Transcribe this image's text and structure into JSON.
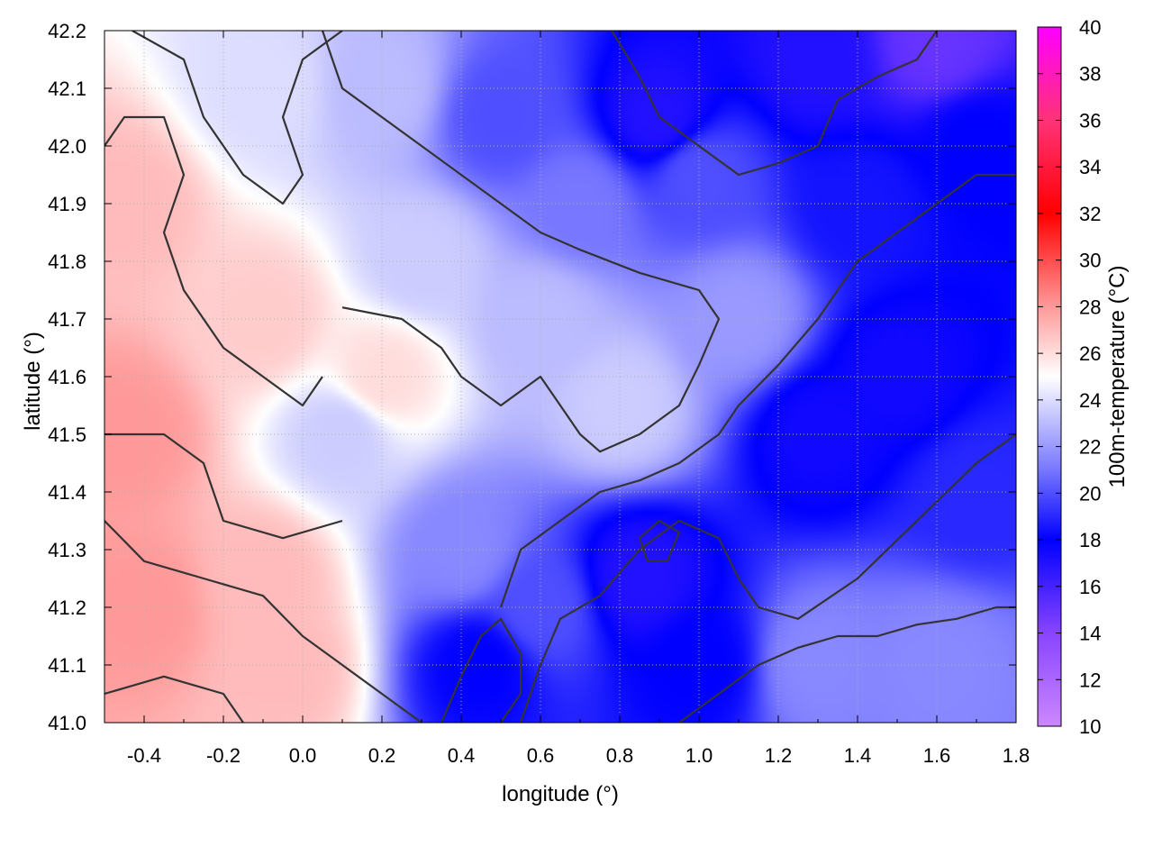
{
  "chart_data": {
    "type": "heatmap",
    "title": "",
    "xlabel": "longitude (°)",
    "ylabel": "latitude (°)",
    "xlim": [
      -0.5,
      1.8
    ],
    "ylim": [
      41.0,
      42.2
    ],
    "x_ticks": [
      "-0.4",
      "-0.2",
      "0.0",
      "0.2",
      "0.4",
      "0.6",
      "0.8",
      "1.0",
      "1.2",
      "1.4",
      "1.6",
      "1.8"
    ],
    "y_ticks": [
      "41.0",
      "41.1",
      "41.2",
      "41.3",
      "41.4",
      "41.5",
      "41.6",
      "41.7",
      "41.8",
      "41.9",
      "42.0",
      "42.1",
      "42.2"
    ],
    "grid": true,
    "colorbar": {
      "label": "100m-temperature (°C)",
      "range": [
        10,
        40
      ],
      "ticks": [
        "10",
        "12",
        "14",
        "16",
        "18",
        "20",
        "22",
        "24",
        "26",
        "28",
        "30",
        "32",
        "34",
        "36",
        "38",
        "40"
      ],
      "stops": [
        {
          "value": 10,
          "color": "#cc88ff"
        },
        {
          "value": 14,
          "color": "#8844ff"
        },
        {
          "value": 18,
          "color": "#0000ff"
        },
        {
          "value": 21,
          "color": "#7777ff"
        },
        {
          "value": 25,
          "color": "#ffffff"
        },
        {
          "value": 28,
          "color": "#ff9999"
        },
        {
          "value": 32,
          "color": "#ff0000"
        },
        {
          "value": 36,
          "color": "#ff3377"
        },
        {
          "value": 40,
          "color": "#ff00ff"
        }
      ]
    },
    "field_points": [
      {
        "x": -0.45,
        "y": 41.5,
        "v": 28
      },
      {
        "x": -0.4,
        "y": 41.2,
        "v": 28
      },
      {
        "x": -0.1,
        "y": 41.25,
        "v": 27
      },
      {
        "x": -0.45,
        "y": 41.9,
        "v": 27
      },
      {
        "x": -0.1,
        "y": 41.7,
        "v": 26.5
      },
      {
        "x": 0.2,
        "y": 41.6,
        "v": 26
      },
      {
        "x": -0.05,
        "y": 41.1,
        "v": 27
      },
      {
        "x": 0.1,
        "y": 41.5,
        "v": 23.5
      },
      {
        "x": 0.3,
        "y": 41.8,
        "v": 23.5
      },
      {
        "x": -0.1,
        "y": 42.1,
        "v": 24
      },
      {
        "x": 0.2,
        "y": 42.1,
        "v": 23
      },
      {
        "x": 0.4,
        "y": 41.3,
        "v": 21.5
      },
      {
        "x": 0.45,
        "y": 41.1,
        "v": 18
      },
      {
        "x": 0.6,
        "y": 41.2,
        "v": 20
      },
      {
        "x": 0.6,
        "y": 41.7,
        "v": 23
      },
      {
        "x": 0.8,
        "y": 41.55,
        "v": 23.5
      },
      {
        "x": 0.85,
        "y": 41.25,
        "v": 17
      },
      {
        "x": 1.0,
        "y": 41.1,
        "v": 18
      },
      {
        "x": 1.3,
        "y": 41.1,
        "v": 21.5
      },
      {
        "x": 1.6,
        "y": 41.1,
        "v": 21.5
      },
      {
        "x": 1.3,
        "y": 41.5,
        "v": 17.5
      },
      {
        "x": 1.5,
        "y": 41.6,
        "v": 17.5
      },
      {
        "x": 1.7,
        "y": 41.4,
        "v": 19
      },
      {
        "x": 1.1,
        "y": 41.7,
        "v": 22
      },
      {
        "x": 1.4,
        "y": 41.9,
        "v": 18.5
      },
      {
        "x": 1.7,
        "y": 42.0,
        "v": 18
      },
      {
        "x": 1.3,
        "y": 42.15,
        "v": 17
      },
      {
        "x": 1.6,
        "y": 42.18,
        "v": 15
      },
      {
        "x": 0.9,
        "y": 42.05,
        "v": 17
      },
      {
        "x": 0.5,
        "y": 42.05,
        "v": 20
      },
      {
        "x": 0.7,
        "y": 41.9,
        "v": 21
      },
      {
        "x": 1.0,
        "y": 41.95,
        "v": 20
      }
    ],
    "contours": [
      [
        [
          -0.43,
          42.2
        ],
        [
          -0.3,
          42.15
        ],
        [
          -0.25,
          42.05
        ],
        [
          -0.15,
          41.95
        ],
        [
          -0.05,
          41.9
        ],
        [
          0.0,
          41.95
        ],
        [
          -0.05,
          42.05
        ],
        [
          0.0,
          42.15
        ],
        [
          0.1,
          42.2
        ]
      ],
      [
        [
          -0.5,
          42.0
        ],
        [
          -0.45,
          42.05
        ],
        [
          -0.35,
          42.05
        ],
        [
          -0.3,
          41.95
        ],
        [
          -0.35,
          41.85
        ],
        [
          -0.3,
          41.75
        ],
        [
          -0.2,
          41.65
        ],
        [
          -0.1,
          41.6
        ],
        [
          0.0,
          41.55
        ],
        [
          0.05,
          41.6
        ]
      ],
      [
        [
          -0.5,
          41.5
        ],
        [
          -0.35,
          41.5
        ],
        [
          -0.25,
          41.45
        ],
        [
          -0.2,
          41.35
        ],
        [
          -0.05,
          41.32
        ],
        [
          0.1,
          41.35
        ]
      ],
      [
        [
          -0.5,
          41.35
        ],
        [
          -0.4,
          41.28
        ],
        [
          -0.25,
          41.25
        ],
        [
          -0.1,
          41.22
        ],
        [
          0.0,
          41.15
        ],
        [
          0.1,
          41.1
        ],
        [
          0.2,
          41.05
        ],
        [
          0.3,
          41.0
        ]
      ],
      [
        [
          -0.5,
          41.05
        ],
        [
          -0.35,
          41.08
        ],
        [
          -0.2,
          41.05
        ],
        [
          -0.15,
          41.0
        ]
      ],
      [
        [
          0.05,
          42.2
        ],
        [
          0.1,
          42.1
        ],
        [
          0.2,
          42.05
        ],
        [
          0.3,
          42.0
        ],
        [
          0.4,
          41.95
        ],
        [
          0.5,
          41.9
        ],
        [
          0.6,
          41.85
        ],
        [
          0.7,
          41.82
        ],
        [
          0.85,
          41.78
        ],
        [
          1.0,
          41.75
        ],
        [
          1.05,
          41.7
        ],
        [
          1.0,
          41.62
        ],
        [
          0.95,
          41.55
        ],
        [
          0.85,
          41.5
        ],
        [
          0.75,
          41.47
        ],
        [
          0.7,
          41.5
        ],
        [
          0.6,
          41.6
        ],
        [
          0.5,
          41.55
        ],
        [
          0.4,
          41.6
        ],
        [
          0.35,
          41.65
        ],
        [
          0.25,
          41.7
        ],
        [
          0.1,
          41.72
        ]
      ],
      [
        [
          0.5,
          41.2
        ],
        [
          0.55,
          41.3
        ],
        [
          0.65,
          41.35
        ],
        [
          0.75,
          41.4
        ],
        [
          0.85,
          41.42
        ],
        [
          0.95,
          41.45
        ],
        [
          1.05,
          41.5
        ],
        [
          1.1,
          41.55
        ],
        [
          1.2,
          41.62
        ],
        [
          1.3,
          41.7
        ],
        [
          1.4,
          41.8
        ],
        [
          1.5,
          41.85
        ],
        [
          1.6,
          41.9
        ],
        [
          1.7,
          41.95
        ],
        [
          1.8,
          41.95
        ]
      ],
      [
        [
          0.55,
          41.0
        ],
        [
          0.6,
          41.1
        ],
        [
          0.65,
          41.18
        ],
        [
          0.75,
          41.22
        ],
        [
          0.85,
          41.3
        ],
        [
          0.95,
          41.35
        ],
        [
          1.05,
          41.32
        ],
        [
          1.1,
          41.25
        ],
        [
          1.15,
          41.2
        ],
        [
          1.25,
          41.18
        ],
        [
          1.4,
          41.25
        ],
        [
          1.55,
          41.35
        ],
        [
          1.7,
          41.45
        ],
        [
          1.8,
          41.5
        ]
      ],
      [
        [
          0.95,
          41.0
        ],
        [
          1.05,
          41.05
        ],
        [
          1.15,
          41.1
        ],
        [
          1.25,
          41.13
        ],
        [
          1.35,
          41.15
        ],
        [
          1.45,
          41.15
        ],
        [
          1.55,
          41.17
        ],
        [
          1.65,
          41.18
        ],
        [
          1.75,
          41.2
        ],
        [
          1.8,
          41.2
        ]
      ],
      [
        [
          0.78,
          42.2
        ],
        [
          0.85,
          42.12
        ],
        [
          0.9,
          42.05
        ],
        [
          1.0,
          42.0
        ],
        [
          1.1,
          41.95
        ],
        [
          1.2,
          41.97
        ],
        [
          1.3,
          42.0
        ],
        [
          1.35,
          42.08
        ],
        [
          1.45,
          42.12
        ],
        [
          1.55,
          42.15
        ],
        [
          1.6,
          42.2
        ]
      ],
      [
        [
          0.35,
          41.0
        ],
        [
          0.4,
          41.08
        ],
        [
          0.45,
          41.15
        ],
        [
          0.5,
          41.18
        ],
        [
          0.55,
          41.12
        ],
        [
          0.55,
          41.05
        ],
        [
          0.5,
          41.0
        ]
      ],
      [
        [
          0.85,
          41.32
        ],
        [
          0.9,
          41.35
        ],
        [
          0.95,
          41.33
        ],
        [
          0.92,
          41.28
        ],
        [
          0.87,
          41.28
        ],
        [
          0.85,
          41.32
        ]
      ]
    ]
  }
}
